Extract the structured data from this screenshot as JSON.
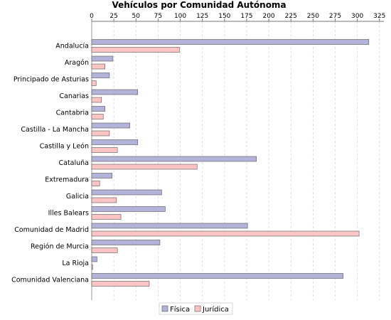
{
  "chart_data": {
    "type": "bar",
    "orientation": "horizontal",
    "title": "Vehículos por Comunidad Autónoma",
    "xlim": [
      0,
      330
    ],
    "xticks": [
      0,
      25,
      50,
      75,
      100,
      125,
      150,
      175,
      200,
      225,
      250,
      275,
      300,
      325
    ],
    "xtick_labels": [
      "0",
      "25",
      "50",
      "75",
      "100",
      "125",
      "150",
      "175",
      "200",
      "225",
      "250",
      "275",
      "300",
      "325"
    ],
    "axis_position": "top",
    "grid": "vertical dashed",
    "legend_placement": "bottom",
    "categories": [
      "Andalucía",
      "Aragón",
      "Principado de Asturias",
      "Canarias",
      "Cantabria",
      "Castilla - La Mancha",
      "Castilla y León",
      "Cataluña",
      "Extremadura",
      "Galicia",
      "Illes Balears",
      "Comunidad de Madrid",
      "Región de Murcia",
      "La Rioja",
      "Comunidad Valenciana"
    ],
    "series": [
      {
        "name": "Física",
        "color": "#b3b3d9",
        "values": [
          313,
          24,
          20,
          52,
          15,
          43,
          52,
          186,
          23,
          79,
          83,
          176,
          77,
          6,
          284
        ]
      },
      {
        "name": "Jurídica",
        "color": "#fcc5c5",
        "values": [
          99,
          15,
          5,
          11,
          13,
          20,
          29,
          119,
          9,
          28,
          33,
          302,
          29,
          1,
          65
        ]
      }
    ]
  }
}
